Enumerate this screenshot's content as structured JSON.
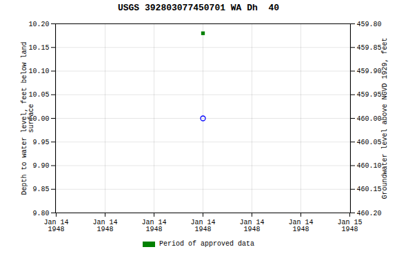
{
  "chart_data": {
    "type": "scatter",
    "title": "USGS 392803077450701 WA Dh  40",
    "categories": [
      "Jan 14\n1948",
      "Jan 14\n1948",
      "Jan 14\n1948",
      "Jan 14\n1948",
      "Jan 14\n1948",
      "Jan 14\n1948",
      "Jan 15\n1948"
    ],
    "ylabel": "Depth to water level, feet below land\nsurface",
    "y2label": "Groundwater level above NGVD 1929, feet",
    "ylim": [
      9.8,
      10.2
    ],
    "yticks": [
      {
        "value": 9.8,
        "label": "9.80"
      },
      {
        "value": 9.85,
        "label": "9.85"
      },
      {
        "value": 9.9,
        "label": "9.90"
      },
      {
        "value": 9.95,
        "label": "9.95"
      },
      {
        "value": 10.0,
        "label": "10.00"
      },
      {
        "value": 10.05,
        "label": "10.05"
      },
      {
        "value": 10.1,
        "label": "10.10"
      },
      {
        "value": 10.15,
        "label": "10.15"
      },
      {
        "value": 10.2,
        "label": "10.20"
      }
    ],
    "y2lim": [
      460.2,
      459.8
    ],
    "y2ticks": [
      {
        "value": 460.2,
        "label": "460.20"
      },
      {
        "value": 460.15,
        "label": "460.15"
      },
      {
        "value": 460.1,
        "label": "460.10"
      },
      {
        "value": 460.05,
        "label": "460.05"
      },
      {
        "value": 460.0,
        "label": "460.00"
      },
      {
        "value": 459.95,
        "label": "459.95"
      },
      {
        "value": 459.9,
        "label": "459.90"
      },
      {
        "value": 459.85,
        "label": "459.85"
      },
      {
        "value": 459.8,
        "label": "459.80"
      }
    ],
    "grid": true,
    "legend": "bottom",
    "series": [
      {
        "color": "#0000ff",
        "marker": "open_circle",
        "values": [
          null,
          null,
          null,
          10.0,
          null,
          null,
          null
        ]
      },
      {
        "name": "Period of approved data",
        "color": "#008000",
        "marker": "square",
        "values": [
          null,
          null,
          null,
          10.18,
          null,
          null,
          null
        ]
      }
    ]
  }
}
